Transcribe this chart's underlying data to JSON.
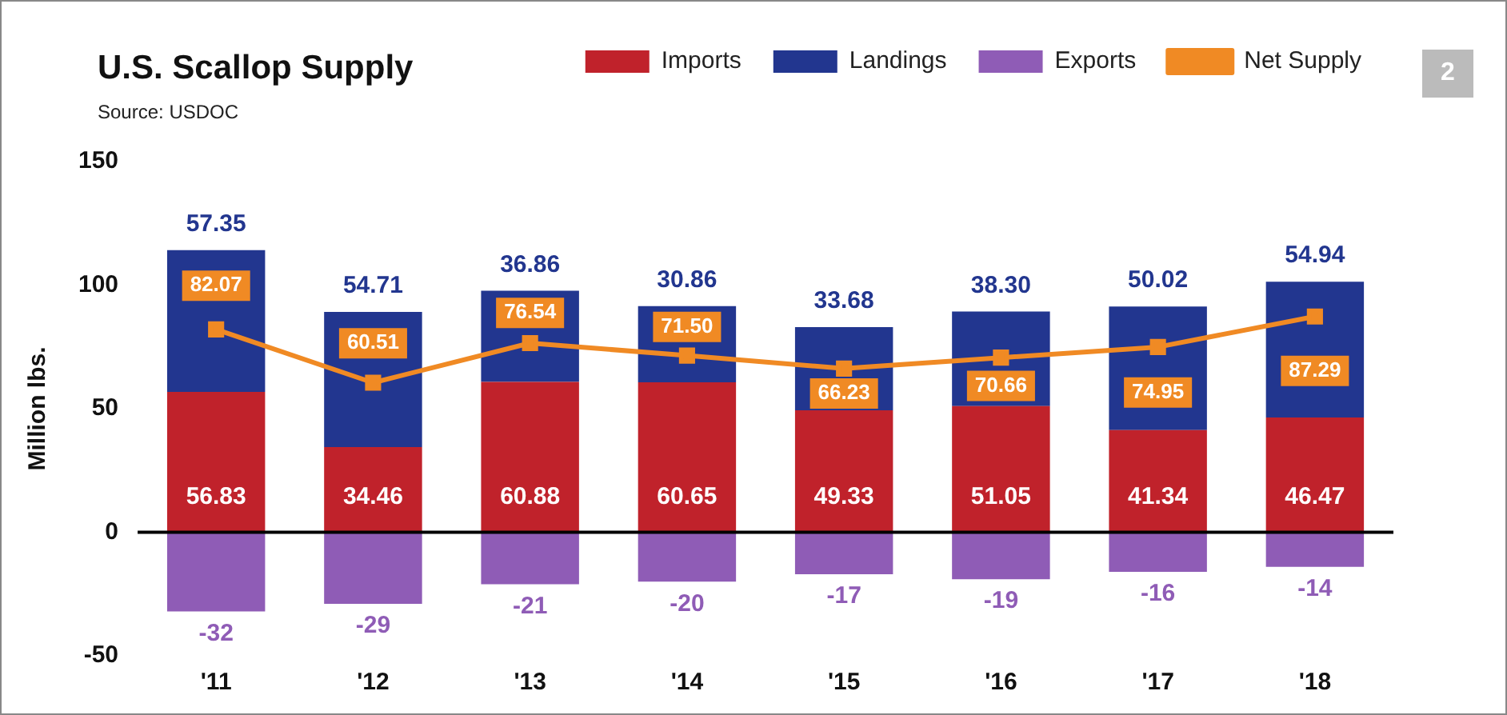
{
  "chart_data": {
    "type": "bar",
    "title": "U.S. Scallop Supply",
    "subtitle": "Source: USDOC",
    "ylabel": "Million lbs.",
    "annotations": [
      "2"
    ],
    "categories": [
      "'11",
      "'12",
      "'13",
      "'14",
      "'15",
      "'16",
      "'17",
      "'18"
    ],
    "stacked": true,
    "series": [
      {
        "name": "Imports",
        "color": "#c0222b",
        "values": [
          56.83,
          34.46,
          60.88,
          60.65,
          49.33,
          51.05,
          41.34,
          46.47
        ]
      },
      {
        "name": "Landings",
        "color": "#22368f",
        "values": [
          57.35,
          54.71,
          36.86,
          30.86,
          33.68,
          38.3,
          50.02,
          54.94
        ],
        "value_labels": [
          "57.35",
          "54.71",
          "36.86",
          "30.86",
          "33.68",
          "38.30",
          "50.02",
          "54.94"
        ]
      },
      {
        "name": "Exports",
        "color": "#8f5cb6",
        "values": [
          -32,
          -29,
          -21,
          -20,
          -17,
          -19,
          -16,
          -14
        ]
      },
      {
        "name": "Net Supply",
        "type": "line",
        "color": "#f08a24",
        "marker": "square",
        "values": [
          82.07,
          60.51,
          76.54,
          71.5,
          66.23,
          70.66,
          74.95,
          87.29
        ],
        "value_labels": [
          "82.07",
          "60.51",
          "76.54",
          "71.50",
          "66.23",
          "70.66",
          "74.95",
          "87.29"
        ]
      }
    ],
    "ylim": [
      -50,
      150
    ],
    "yticks": [
      -50,
      0,
      50,
      100,
      150
    ],
    "grid": false,
    "legend": "top right",
    "data_labels": true,
    "ref_lines": [
      {
        "axis": "y",
        "value": 0,
        "color": "#000000"
      }
    ]
  }
}
